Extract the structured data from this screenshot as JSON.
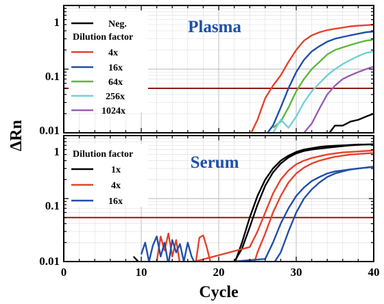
{
  "colors": {
    "neg": "#000000",
    "d4": "#e8402a",
    "d16": "#1f4fa8",
    "d64": "#5cb83a",
    "d256": "#6fd0d8",
    "d1024": "#9a5bb5",
    "serum1": "#000000",
    "serum4": "#e8402a",
    "serum16": "#1f4fa8",
    "threshold": "#8b1a10",
    "title": "#1f4fa8"
  },
  "axes": {
    "ylabel": "ΔRn",
    "xlabel": "Cycle",
    "x_ticks": [
      "0",
      "10",
      "20",
      "30",
      "40"
    ],
    "y_ticks": [
      "0.01",
      "0.1",
      "1"
    ]
  },
  "chart_data": [
    {
      "type": "line",
      "title": "Plasma",
      "xlabel": "Cycle",
      "ylabel": "ΔRn",
      "xlim": [
        0,
        40
      ],
      "ylim": [
        0.01,
        1
      ],
      "yscale": "log",
      "grid": true,
      "legend_placement": "top-left",
      "legend_header": "Dilution factor",
      "threshold": 0.05,
      "series": [
        {
          "name": "Neg.",
          "color_key": "neg",
          "x": [
            34,
            35,
            36,
            37,
            38,
            39,
            40
          ],
          "y": [
            0.009,
            0.013,
            0.013,
            0.015,
            0.016,
            0.018,
            0.02
          ]
        },
        {
          "name": "4x",
          "color_key": "d4",
          "x": [
            24,
            25,
            26,
            27,
            28,
            29,
            30,
            31,
            32,
            33,
            34,
            35,
            36,
            37,
            38,
            39,
            40
          ],
          "y": [
            0.009,
            0.016,
            0.035,
            0.055,
            0.08,
            0.13,
            0.2,
            0.28,
            0.34,
            0.38,
            0.41,
            0.43,
            0.45,
            0.47,
            0.48,
            0.49,
            0.5
          ]
        },
        {
          "name": "16x",
          "color_key": "d16",
          "x": [
            26,
            27,
            28,
            29,
            30,
            31,
            32,
            33,
            34,
            35,
            36,
            37,
            38,
            39,
            40
          ],
          "y": [
            0.009,
            0.013,
            0.025,
            0.05,
            0.09,
            0.14,
            0.19,
            0.23,
            0.27,
            0.3,
            0.32,
            0.34,
            0.36,
            0.38,
            0.39
          ]
        },
        {
          "name": "64x",
          "color_key": "d64",
          "x": [
            27,
            28,
            29,
            30,
            31,
            32,
            33,
            34,
            35,
            36,
            37,
            38,
            39,
            40
          ],
          "y": [
            0.012,
            0.015,
            0.025,
            0.045,
            0.07,
            0.1,
            0.13,
            0.17,
            0.2,
            0.22,
            0.24,
            0.26,
            0.28,
            0.29
          ]
        },
        {
          "name": "256x",
          "color_key": "d256",
          "x": [
            27,
            28,
            29,
            30,
            31,
            32,
            33,
            34,
            35,
            36,
            37,
            38,
            39,
            40
          ],
          "y": [
            0.01,
            0.016,
            0.012,
            0.018,
            0.03,
            0.045,
            0.06,
            0.08,
            0.1,
            0.12,
            0.14,
            0.16,
            0.18,
            0.19
          ]
        },
        {
          "name": "1024x",
          "color_key": "d1024",
          "x": [
            30,
            31,
            32,
            33,
            34,
            35,
            36,
            37,
            38,
            39,
            40
          ],
          "y": [
            0.009,
            0.01,
            0.014,
            0.024,
            0.04,
            0.055,
            0.07,
            0.08,
            0.09,
            0.1,
            0.11
          ]
        }
      ]
    },
    {
      "type": "line",
      "title": "Serum",
      "xlabel": "Cycle",
      "ylabel": "ΔRn",
      "xlim": [
        0,
        40
      ],
      "ylim": [
        0.01,
        1
      ],
      "yscale": "log",
      "grid": true,
      "legend_placement": "top-left",
      "legend_header": "Dilution factor",
      "threshold": 0.05,
      "series": [
        {
          "name": "1x",
          "color_key": "serum1",
          "x": [
            22,
            23,
            24,
            25,
            26,
            27,
            28,
            29,
            30,
            31,
            32,
            33,
            34,
            35,
            36,
            37,
            38,
            39,
            40
          ],
          "y": [
            0.009,
            0.02,
            0.05,
            0.11,
            0.2,
            0.3,
            0.4,
            0.48,
            0.55,
            0.6,
            0.63,
            0.66,
            0.68,
            0.69,
            0.7,
            0.71,
            0.72,
            0.72,
            0.73
          ]
        },
        {
          "name": "",
          "color_key": "serum1",
          "x": [
            9,
            9.6,
            10,
            21.8,
            23,
            24,
            25,
            26,
            27,
            28,
            29,
            30,
            31,
            32,
            33,
            34,
            35,
            36,
            37,
            38,
            39,
            40
          ],
          "y": [
            0.012,
            0.01,
            0.009,
            0.009,
            0.016,
            0.035,
            0.08,
            0.16,
            0.26,
            0.36,
            0.45,
            0.52,
            0.57,
            0.6,
            0.62,
            0.64,
            0.66,
            0.68,
            0.7,
            0.71,
            0.72,
            0.72
          ]
        },
        {
          "name": "4x",
          "color_key": "serum4",
          "x": [
            12,
            12.5,
            13,
            13.5,
            14,
            14.5,
            15,
            15.5,
            24,
            25,
            26,
            27,
            28,
            29,
            30,
            31,
            32,
            33,
            34,
            35,
            36,
            37,
            38,
            39,
            40
          ],
          "y": [
            0.01,
            0.025,
            0.015,
            0.028,
            0.012,
            0.022,
            0.009,
            0.009,
            0.017,
            0.03,
            0.06,
            0.12,
            0.2,
            0.28,
            0.35,
            0.4,
            0.44,
            0.47,
            0.5,
            0.52,
            0.54,
            0.55,
            0.56,
            0.57,
            0.58
          ]
        },
        {
          "name": "",
          "color_key": "serum4",
          "x": [
            17,
            17.5,
            18,
            18.5,
            19,
            24.5,
            25,
            26,
            27,
            28,
            29,
            30,
            31,
            32,
            33,
            34,
            35,
            36,
            37,
            38,
            39,
            40
          ],
          "y": [
            0.009,
            0.024,
            0.026,
            0.016,
            0.009,
            0.009,
            0.014,
            0.028,
            0.06,
            0.11,
            0.18,
            0.25,
            0.31,
            0.36,
            0.4,
            0.43,
            0.46,
            0.48,
            0.5,
            0.51,
            0.52,
            0.53
          ]
        },
        {
          "name": "16x",
          "color_key": "serum16",
          "x": [
            10,
            10.5,
            11,
            11.5,
            12,
            12.5,
            13,
            13.5,
            14,
            14.5,
            15,
            15.5,
            16,
            16.5,
            17,
            26,
            27,
            28,
            29,
            30,
            31,
            32,
            33,
            34,
            35,
            36,
            37,
            38,
            39,
            40
          ],
          "y": [
            0.013,
            0.02,
            0.01,
            0.018,
            0.025,
            0.012,
            0.02,
            0.009,
            0.022,
            0.014,
            0.019,
            0.01,
            0.02,
            0.012,
            0.009,
            0.011,
            0.02,
            0.04,
            0.07,
            0.11,
            0.15,
            0.19,
            0.22,
            0.25,
            0.27,
            0.28,
            0.29,
            0.3,
            0.31,
            0.32
          ]
        },
        {
          "name": "",
          "color_key": "serum16",
          "x": [
            27,
            28,
            29,
            30,
            31,
            32,
            33,
            34,
            35,
            36,
            37,
            38,
            39,
            40
          ],
          "y": [
            0.009,
            0.014,
            0.03,
            0.06,
            0.1,
            0.14,
            0.18,
            0.22,
            0.25,
            0.27,
            0.29,
            0.3,
            0.31,
            0.32
          ]
        }
      ]
    }
  ]
}
